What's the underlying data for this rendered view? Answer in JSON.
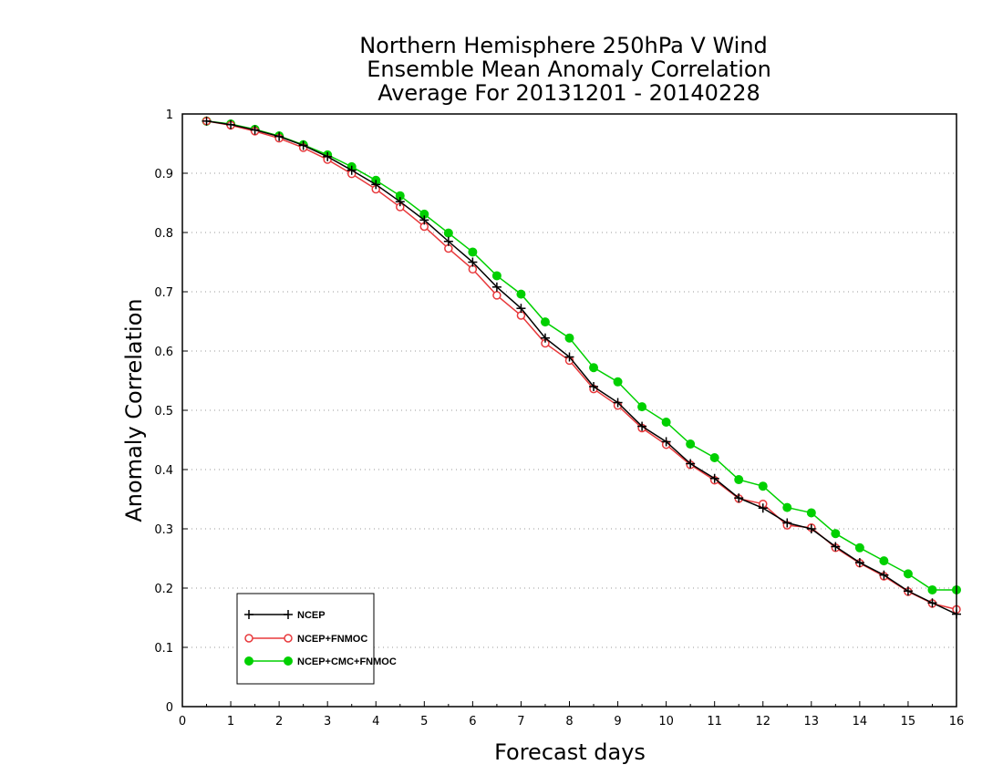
{
  "chart_data": {
    "type": "line",
    "title_lines": [
      "Northern Hemisphere 250hPa V Wind",
      "Ensemble Mean Anomaly Correlation",
      "Average For 20131201 - 20140228"
    ],
    "xlabel": "Forecast days",
    "ylabel": "Anomaly Correlation",
    "xlim": [
      0,
      16
    ],
    "ylim": [
      0,
      1
    ],
    "x_ticks": [
      "0",
      "1",
      "2",
      "3",
      "4",
      "5",
      "6",
      "7",
      "8",
      "9",
      "10",
      "11",
      "12",
      "13",
      "14",
      "15",
      "16"
    ],
    "y_ticks": [
      "0",
      "0.1",
      "0.2",
      "0.3",
      "0.4",
      "0.5",
      "0.6",
      "0.7",
      "0.8",
      "0.9",
      "1"
    ],
    "grid": true,
    "legend_position": "bottom-left",
    "x": [
      0.5,
      1,
      1.5,
      2,
      2.5,
      3,
      3.5,
      4,
      4.5,
      5,
      5.5,
      6,
      6.5,
      7,
      7.5,
      8,
      8.5,
      9,
      9.5,
      10,
      10.5,
      11,
      11.5,
      12,
      12.5,
      13,
      13.5,
      14,
      14.5,
      15,
      15.5,
      16
    ],
    "series": [
      {
        "name": "NCEP",
        "color": "#000000",
        "marker": "plus",
        "values": [
          0.988,
          0.982,
          0.973,
          0.962,
          0.947,
          0.928,
          0.905,
          0.881,
          0.852,
          0.821,
          0.785,
          0.75,
          0.708,
          0.672,
          0.622,
          0.59,
          0.54,
          0.513,
          0.473,
          0.447,
          0.41,
          0.385,
          0.352,
          0.335,
          0.31,
          0.3,
          0.27,
          0.243,
          0.222,
          0.195,
          0.175,
          0.156
        ]
      },
      {
        "name": "NCEP+FNMOC",
        "color": "#e8393c",
        "marker": "open-circle",
        "values": [
          0.988,
          0.981,
          0.971,
          0.959,
          0.943,
          0.923,
          0.899,
          0.873,
          0.843,
          0.81,
          0.773,
          0.738,
          0.694,
          0.66,
          0.613,
          0.584,
          0.536,
          0.508,
          0.47,
          0.442,
          0.408,
          0.382,
          0.351,
          0.342,
          0.306,
          0.302,
          0.268,
          0.242,
          0.22,
          0.194,
          0.174,
          0.164
        ]
      },
      {
        "name": "NCEP+CMC+FNMOC",
        "color": "#00d000",
        "marker": "filled-circle",
        "values": [
          0.988,
          0.983,
          0.974,
          0.963,
          0.948,
          0.931,
          0.911,
          0.888,
          0.862,
          0.831,
          0.799,
          0.767,
          0.727,
          0.696,
          0.649,
          0.622,
          0.572,
          0.548,
          0.506,
          0.48,
          0.443,
          0.42,
          0.383,
          0.372,
          0.336,
          0.327,
          0.292,
          0.268,
          0.246,
          0.224,
          0.197,
          0.197
        ]
      }
    ]
  }
}
